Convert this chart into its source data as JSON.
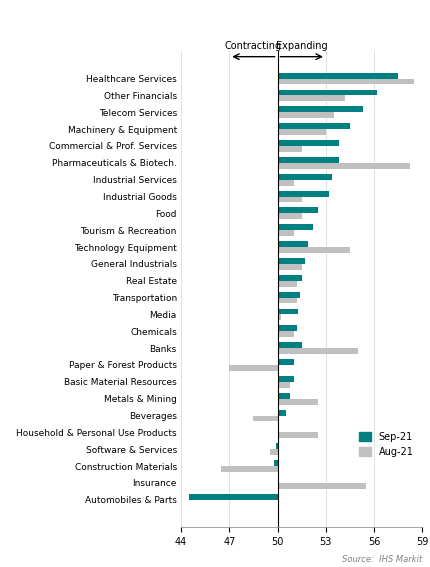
{
  "categories": [
    "Healthcare Services",
    "Other Financials",
    "Telecom Services",
    "Machinery & Equipment",
    "Commercial & Prof. Services",
    "Pharmaceuticals & Biotech.",
    "Industrial Services",
    "Industrial Goods",
    "Food",
    "Tourism & Recreation",
    "Technology Equipment",
    "General Industrials",
    "Real Estate",
    "Transportation",
    "Media",
    "Chemicals",
    "Banks",
    "Paper & Forest Products",
    "Basic Material Resources",
    "Metals & Mining",
    "Beverages",
    "Household & Personal Use Products",
    "Software & Services",
    "Construction Materials",
    "Insurance",
    "Automobiles & Parts"
  ],
  "sep21": [
    57.5,
    56.2,
    55.3,
    54.5,
    53.8,
    53.8,
    53.4,
    53.2,
    52.5,
    52.2,
    51.9,
    51.7,
    51.5,
    51.4,
    51.3,
    51.2,
    51.5,
    51.0,
    51.0,
    50.8,
    50.5,
    50.1,
    49.9,
    49.8,
    50.1,
    44.5
  ],
  "aug21": [
    58.5,
    54.2,
    53.5,
    53.0,
    51.5,
    58.2,
    51.0,
    51.5,
    51.5,
    51.0,
    54.5,
    51.5,
    51.2,
    51.2,
    50.2,
    51.0,
    55.0,
    47.0,
    50.8,
    52.5,
    48.5,
    52.5,
    49.5,
    46.5,
    55.5,
    50.0
  ],
  "sep21_color": "#008080",
  "aug21_color": "#c0c0c0",
  "xlim": [
    44,
    59
  ],
  "xticks": [
    44,
    47,
    50,
    53,
    56,
    59
  ],
  "baseline": 50,
  "source_text": "Source:  IHS Markit",
  "contracting_label": "Contracting",
  "expanding_label": "Expanding",
  "legend_sep": "Sep-21",
  "legend_aug": "Aug-21"
}
